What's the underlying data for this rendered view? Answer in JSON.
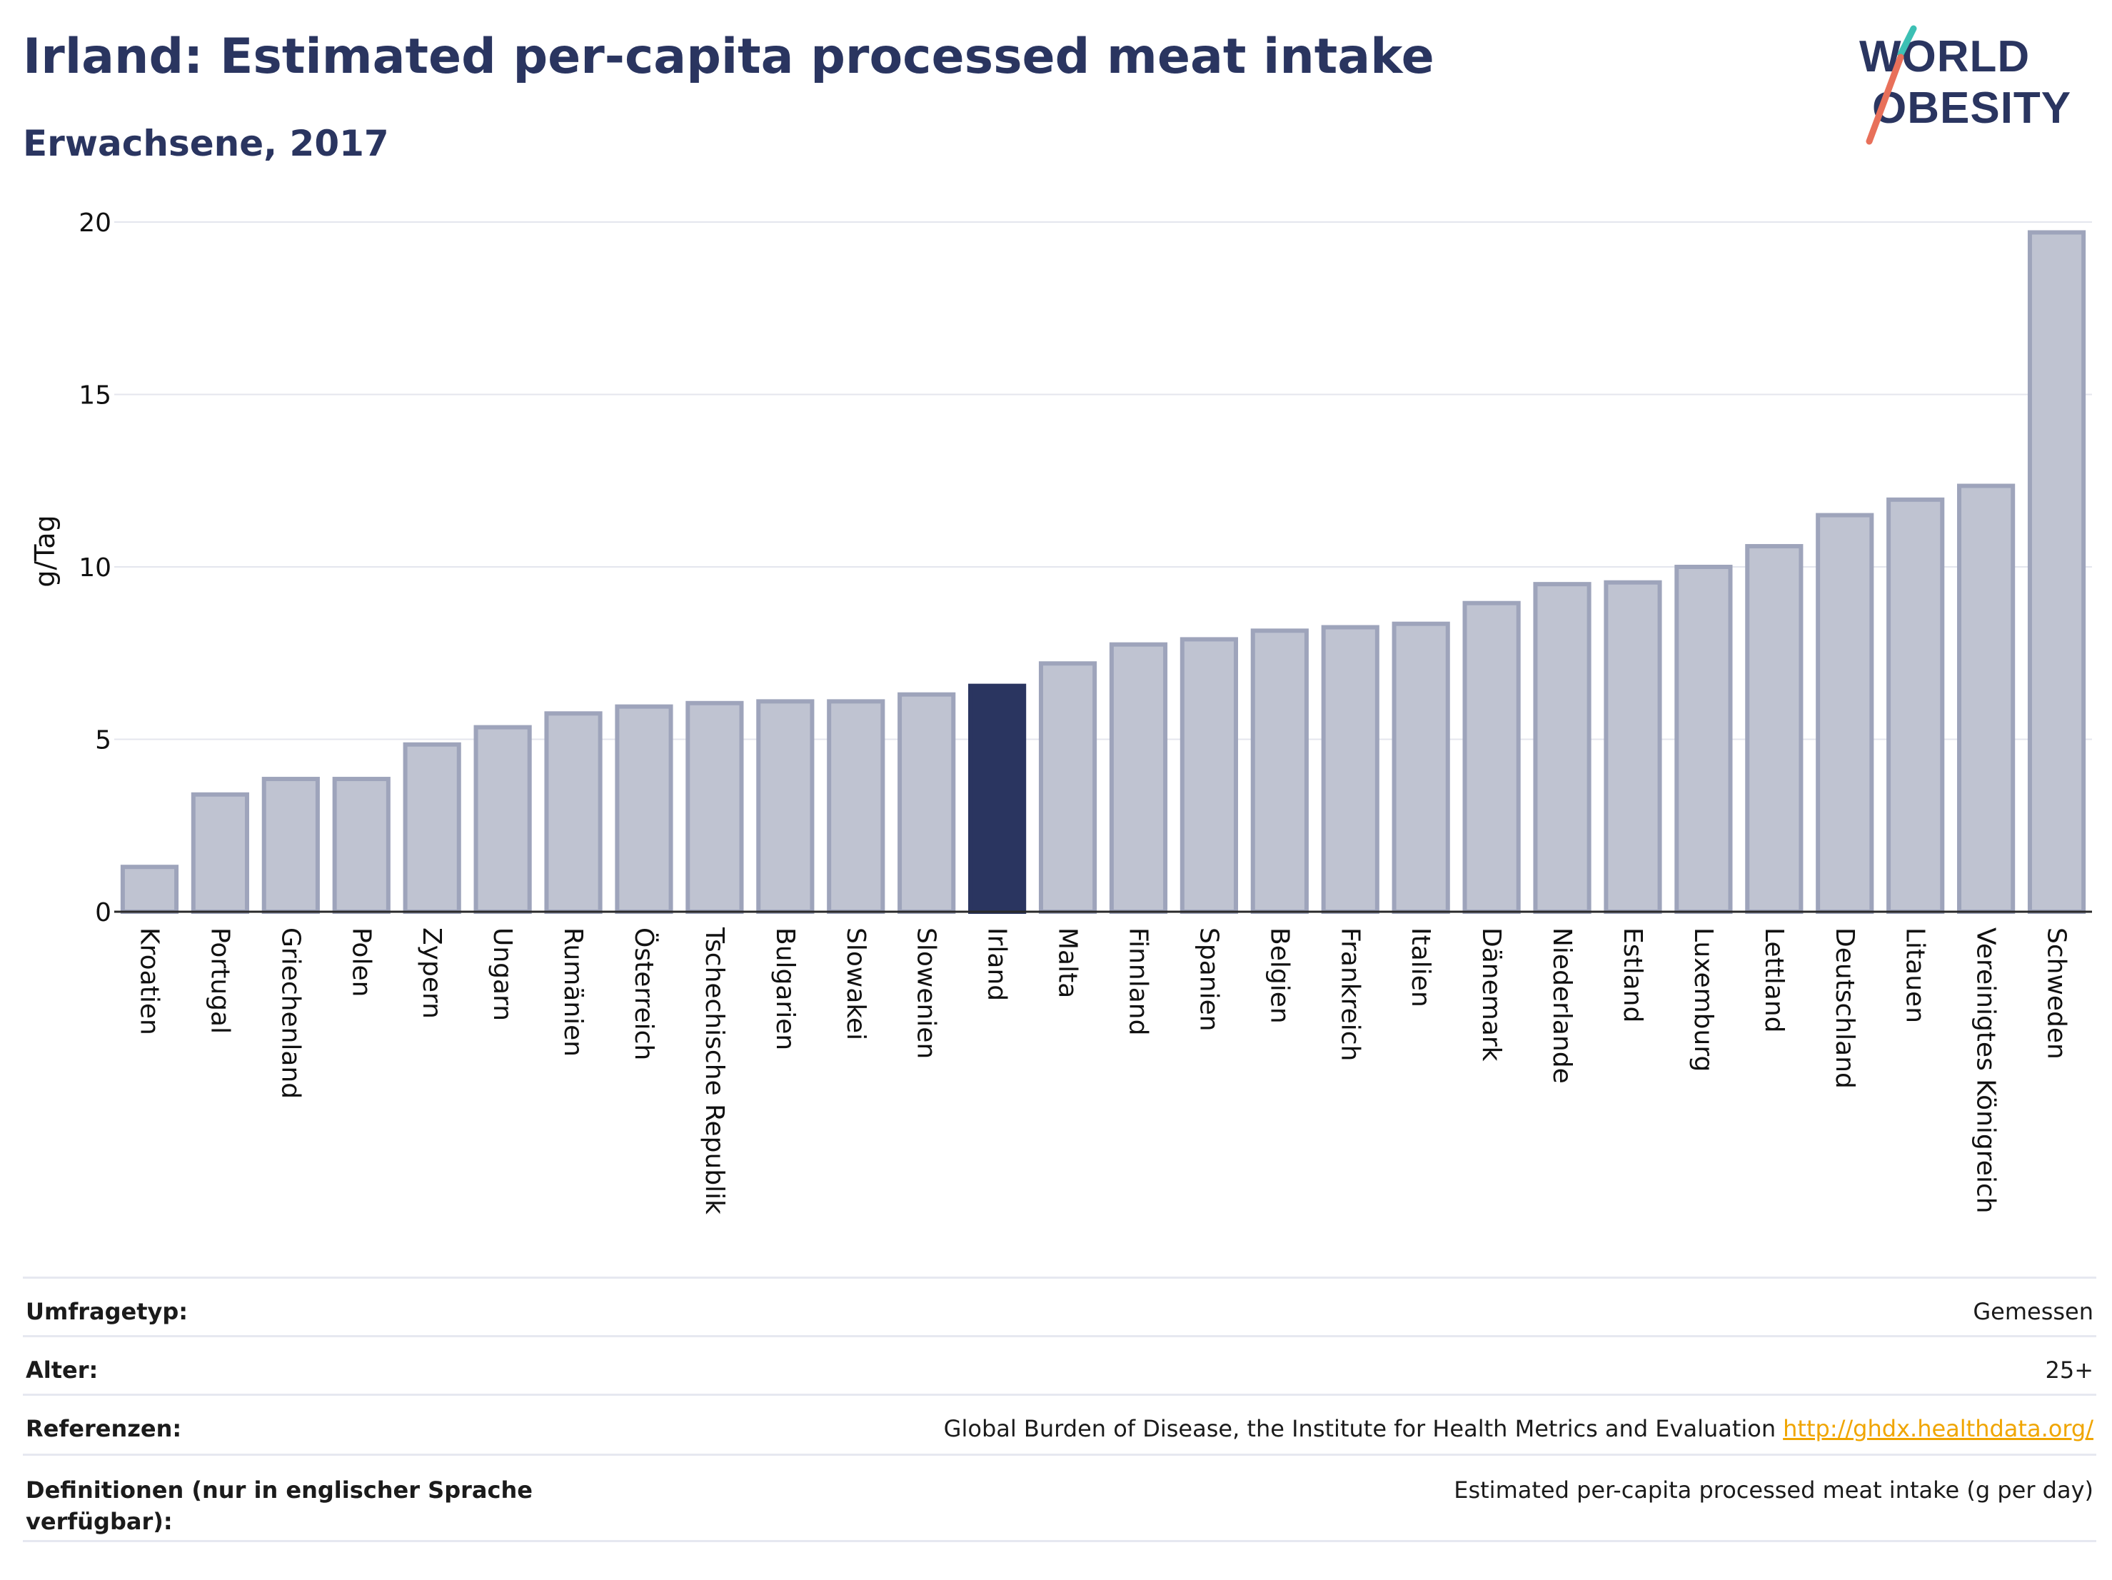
{
  "title": "Irland: Estimated per-capita processed meat intake",
  "subtitle": "Erwachsene, 2017",
  "logo": {
    "line1": "WORLD",
    "line2": "OBESITY",
    "accent_teal": "#3cc0b4",
    "accent_coral": "#e8705a"
  },
  "colors": {
    "bar": "#bfc3d1",
    "bar_stroke": "#9ea4bb",
    "highlight": "#2a3560",
    "grid": "#e4e6ee",
    "text": "#2a3560",
    "link": "#f0a500"
  },
  "chart_data": {
    "type": "bar",
    "ylabel": "g/Tag",
    "ylim": [
      0,
      20
    ],
    "yticks": [
      0,
      5,
      10,
      15,
      20
    ],
    "grid": true,
    "highlight": "Irland",
    "categories": [
      "Kroatien",
      "Portugal",
      "Griechenland",
      "Polen",
      "Zypern",
      "Ungarn",
      "Rumänien",
      "Österreich",
      "Tschechische Republik",
      "Bulgarien",
      "Slowakei",
      "Slowenien",
      "Irland",
      "Malta",
      "Finnland",
      "Spanien",
      "Belgien",
      "Frankreich",
      "Italien",
      "Dänemark",
      "Niederlande",
      "Estland",
      "Luxemburg",
      "Lettland",
      "Deutschland",
      "Litauen",
      "Vereinigtes Königreich",
      "Schweden"
    ],
    "values": [
      1.3,
      3.4,
      3.85,
      3.85,
      4.85,
      5.35,
      5.75,
      5.95,
      6.05,
      6.1,
      6.1,
      6.3,
      6.55,
      7.2,
      7.75,
      7.9,
      8.15,
      8.25,
      8.35,
      8.95,
      9.5,
      9.55,
      10.0,
      10.6,
      11.5,
      11.95,
      12.35,
      19.7
    ]
  },
  "meta": [
    {
      "label": "Umfragetyp:",
      "value": "Gemessen"
    },
    {
      "label": "Alter:",
      "value": "25+"
    },
    {
      "label": "Referenzen:",
      "value": "Global Burden of Disease, the Institute for Health Metrics and Evaluation",
      "link": "http://ghdx.healthdata.org/"
    },
    {
      "label": "Definitionen (nur in englischer Sprache verfügbar):",
      "value": "Estimated per-capita processed meat intake (g per day)"
    }
  ]
}
